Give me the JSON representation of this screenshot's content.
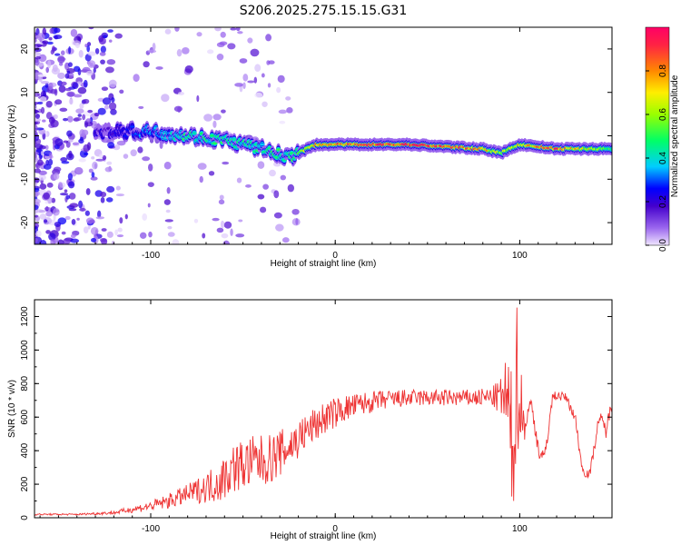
{
  "figure": {
    "title": "S206.2025.275.15.15.G31"
  },
  "chart_data": [
    {
      "type": "heatmap",
      "xlabel": "Height of straight line (km)",
      "ylabel": "Frequency (Hz)",
      "xlim": [
        -163,
        150
      ],
      "ylim": [
        -25,
        25
      ],
      "xticks": [
        -100,
        0,
        100
      ],
      "xtick_labels": [
        "-100",
        "0",
        "100"
      ],
      "yticks": [
        -20,
        -10,
        0,
        10,
        20
      ],
      "ytick_labels": [
        "-20",
        "-10",
        "0",
        "10",
        "20"
      ],
      "colorbar": {
        "label": "Normalized spectral amplitude",
        "range": [
          0,
          1
        ],
        "ticks": [
          0.0,
          0.2,
          0.4,
          0.6,
          0.8
        ],
        "tick_labels": [
          "0.0",
          "0.2",
          "0.4",
          "0.6",
          "0.8"
        ]
      },
      "ridge": {
        "x": [
          -163,
          -120,
          -100,
          -80,
          -60,
          -40,
          -25,
          -10,
          0,
          20,
          40,
          60,
          80,
          90,
          100,
          120,
          150
        ],
        "frequency": [
          1,
          1,
          1,
          0,
          -1,
          -3,
          -5,
          -2,
          -2,
          -2,
          -2,
          -2.5,
          -3,
          -4,
          -2,
          -3,
          -3
        ],
        "amplitude": [
          0.15,
          0.2,
          0.35,
          0.45,
          0.45,
          0.45,
          0.45,
          0.75,
          0.85,
          0.9,
          0.95,
          0.9,
          0.8,
          0.6,
          0.7,
          0.9,
          0.5
        ]
      },
      "noise_region_x": [
        -163,
        -120
      ]
    },
    {
      "type": "line",
      "xlabel": "Height of straight line (km)",
      "ylabel": "SNR (10 * v/v)",
      "xlim": [
        -163,
        150
      ],
      "ylim": [
        0,
        1300
      ],
      "xticks": [
        -100,
        0,
        100
      ],
      "xtick_labels": [
        "-100",
        "0",
        "100"
      ],
      "yticks": [
        0,
        200,
        400,
        600,
        800,
        1000,
        1200
      ],
      "ytick_labels": [
        "0",
        "200",
        "400",
        "600",
        "800",
        "1000",
        "1200"
      ],
      "color": "#ee3333",
      "series": [
        {
          "name": "SNR",
          "x": [
            -163,
            -140,
            -120,
            -110,
            -100,
            -90,
            -80,
            -70,
            -62,
            -55,
            -45,
            -35,
            -25,
            -15,
            -5,
            5,
            15,
            25,
            35,
            45,
            55,
            65,
            75,
            85,
            90,
            93,
            96,
            99,
            101,
            103,
            106,
            110,
            113,
            118,
            125,
            130,
            134,
            138,
            143,
            147,
            150
          ],
          "values": [
            20,
            20,
            30,
            50,
            70,
            100,
            140,
            180,
            220,
            300,
            330,
            350,
            420,
            520,
            600,
            650,
            680,
            700,
            710,
            715,
            715,
            715,
            715,
            720,
            720,
            700,
            400,
            900,
            600,
            550,
            700,
            420,
            330,
            730,
            720,
            600,
            280,
            260,
            600,
            520,
            700
          ],
          "amplitude": [
            5,
            5,
            10,
            20,
            30,
            45,
            60,
            90,
            130,
            150,
            160,
            150,
            130,
            110,
            100,
            80,
            70,
            60,
            55,
            50,
            50,
            50,
            50,
            60,
            120,
            300,
            450,
            500,
            300,
            60,
            30,
            60,
            60,
            30,
            25,
            40,
            30,
            30,
            40,
            50,
            40
          ]
        }
      ]
    }
  ]
}
